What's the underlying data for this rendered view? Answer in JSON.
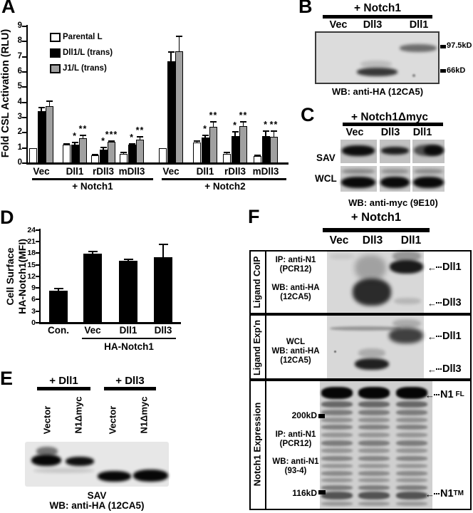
{
  "panels": {
    "A": {
      "label": "A"
    },
    "B": {
      "label": "B",
      "header": "+ Notch1",
      "lanes": [
        "Vec",
        "Dll3",
        "Dll1"
      ],
      "markers": [
        "97.5kD",
        "66kD"
      ],
      "caption": "WB: anti-HA (12CA5)"
    },
    "C": {
      "label": "C",
      "header": "+ Notch1Δmyc",
      "lanes": [
        "Vec",
        "Dll3",
        "Dll1"
      ],
      "rows": [
        "SAV",
        "WCL"
      ],
      "caption": "WB: anti-myc (9E10)"
    },
    "D": {
      "label": "D"
    },
    "E": {
      "label": "E",
      "groups": [
        {
          "header": "+ Dll1",
          "lanes": [
            "Vector",
            "N1Δmyc"
          ]
        },
        {
          "header": "+ Dll3",
          "lanes": [
            "Vector",
            "N1Δmyc"
          ]
        }
      ],
      "captions": [
        "SAV",
        "WB: anti-HA (12CA5)"
      ]
    },
    "F": {
      "label": "F",
      "header": "+ Notch1",
      "lanes": [
        "Vec",
        "Dll3",
        "Dll1"
      ],
      "sections": [
        {
          "side": "Ligand CoIP",
          "lines": [
            "IP: anti-N1",
            "(PCR12)",
            "WB: anti-HA",
            "(12CA5)"
          ],
          "arrows": [
            {
              "label": "Dll1",
              "sup": ""
            },
            {
              "label": "Dll3",
              "sup": ""
            }
          ]
        },
        {
          "side": "Ligand Exp'n",
          "lines": [
            "WCL",
            "WB: anti-HA",
            "(12CA5)"
          ],
          "arrows": [
            {
              "label": "Dll1",
              "sup": ""
            },
            {
              "label": "Dll3",
              "sup": ""
            }
          ]
        },
        {
          "side": "Notch1 Expression",
          "lines": [
            "IP: anti-N1",
            "(PCR12)",
            "WB: anti-N1",
            "(93-4)"
          ],
          "markers": [
            "200kD",
            "116kD"
          ],
          "arrows": [
            {
              "label": "N1",
              "sup": "FL"
            },
            {
              "label": "N1",
              "sup": "TM"
            }
          ]
        }
      ]
    }
  },
  "chart_data": [
    {
      "type": "bar",
      "title": "",
      "ylabel": "Fold CSL Activation (RLU)",
      "ylim": [
        0,
        9
      ],
      "yticks": [
        0,
        1,
        2,
        3,
        4,
        5,
        6,
        7,
        8,
        9
      ],
      "grid": false,
      "legend_position": "upper-left",
      "legend": [
        {
          "label": "Parental L",
          "color": "#ffffff"
        },
        {
          "label": "Dll1/L (trans)",
          "color": "#000000"
        },
        {
          "label": "J1/L (trans)",
          "color": "#a0a0a0"
        }
      ],
      "categories": [
        "Vec",
        "Dll1",
        "rDll3",
        "mDll3",
        "Vec",
        "Dll1",
        "rDll3",
        "mDll3"
      ],
      "sections": [
        {
          "label": "+ Notch1",
          "categories": [
            0,
            1,
            2,
            3
          ]
        },
        {
          "label": "+ Notch2",
          "categories": [
            4,
            5,
            6,
            7
          ]
        }
      ],
      "series": [
        {
          "name": "Parental L",
          "values": [
            1.0,
            1.2,
            0.5,
            0.6,
            1.0,
            1.35,
            0.6,
            0.45
          ],
          "errors": [
            0,
            0.08,
            0.07,
            0.1,
            0,
            0.1,
            0.08,
            0.07
          ],
          "sig": [
            "",
            "",
            "",
            "",
            "",
            "",
            "",
            ""
          ]
        },
        {
          "name": "Dll1/L (trans)",
          "values": [
            3.4,
            1.2,
            0.9,
            1.2,
            6.7,
            1.7,
            1.8,
            1.8
          ],
          "errors": [
            0.25,
            0.15,
            0.12,
            0.05,
            0.6,
            0.15,
            0.25,
            0.3
          ],
          "sig": [
            "",
            "*",
            "*",
            "*",
            "",
            "*",
            "*",
            "*"
          ]
        },
        {
          "name": "J1/L (trans)",
          "values": [
            3.75,
            1.65,
            1.4,
            1.55,
            7.35,
            2.4,
            2.45,
            1.75
          ],
          "errors": [
            0.35,
            0.2,
            0.05,
            0.18,
            1.0,
            0.3,
            0.25,
            0.35
          ],
          "sig": [
            "",
            "**",
            "***",
            "**",
            "",
            "**",
            "**",
            "**"
          ]
        }
      ]
    },
    {
      "type": "bar",
      "title": "",
      "ylabel_lines": [
        "Cell Surface",
        "HA-Notch1(MFI)"
      ],
      "ylim": [
        0,
        24
      ],
      "yticks": [
        0,
        3,
        6,
        9,
        12,
        15,
        18,
        21,
        24
      ],
      "grid": false,
      "bar_color": "#000000",
      "categories": [
        "Con.",
        "Vec",
        "Dll1",
        "Dll3"
      ],
      "values": [
        8.3,
        17.8,
        16.1,
        16.9
      ],
      "errors": [
        0.6,
        0.6,
        0.3,
        3.3
      ],
      "group_label": "HA-Notch1",
      "group_categories": [
        1,
        2,
        3
      ]
    }
  ]
}
